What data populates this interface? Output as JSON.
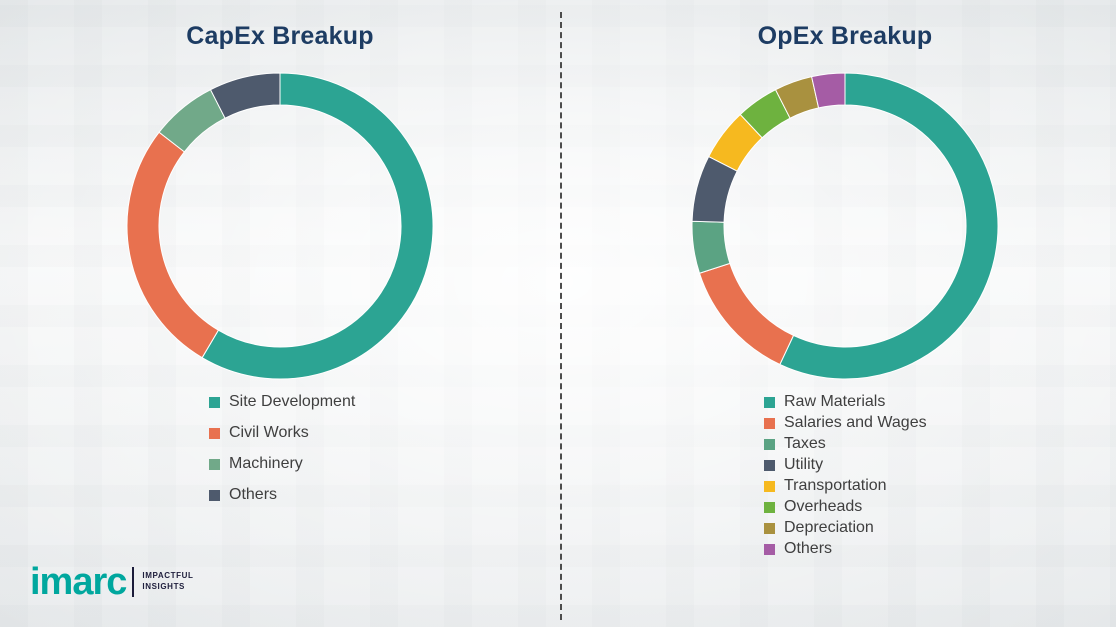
{
  "theme": {
    "title_color": "#1d3c63",
    "legend_text_color": "#3f3f3f",
    "divider_color": "#4c4c4c",
    "background_color": "#f7f8f8"
  },
  "chart_data": [
    {
      "type": "pie",
      "variant": "donut",
      "title": "CapEx Breakup",
      "categories": [
        "Site Development",
        "Civil Works",
        "Machinery",
        "Others"
      ],
      "values": [
        58.5,
        27,
        7,
        7.5
      ],
      "colors": [
        "#2ca493",
        "#e8714f",
        "#71a989",
        "#4e5a6d"
      ],
      "legend_position": "bottom",
      "start_angle_deg": 0,
      "direction": "clockwise"
    },
    {
      "type": "pie",
      "variant": "donut",
      "title": "OpEx Breakup",
      "categories": [
        "Raw Materials",
        "Salaries and Wages",
        "Taxes",
        "Utility",
        "Transportation",
        "Overheads",
        "Depreciation",
        "Others"
      ],
      "values": [
        57,
        13,
        5.5,
        7,
        5.5,
        4.5,
        4,
        3.5
      ],
      "colors": [
        "#2ca493",
        "#e8714f",
        "#5ba383",
        "#4e5a6d",
        "#f6b91f",
        "#6eb23f",
        "#a9913f",
        "#a55ca5"
      ],
      "legend_position": "bottom",
      "start_angle_deg": 0,
      "direction": "clockwise"
    }
  ],
  "logo": {
    "brand": "imarc",
    "brand_color": "#00a79e",
    "tagline_line1": "IMPACTFUL",
    "tagline_line2": "INSIGHTS"
  }
}
